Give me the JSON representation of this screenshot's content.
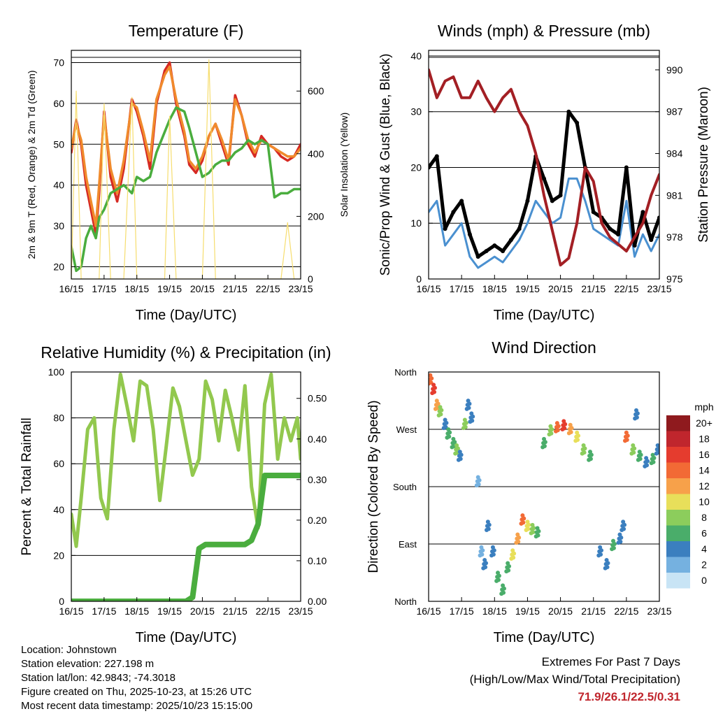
{
  "x_ticks": [
    "16/15",
    "17/15",
    "18/15",
    "19/15",
    "20/15",
    "21/15",
    "22/15",
    "23/15"
  ],
  "x_label": "Time (Day/UTC)",
  "chart_data": [
    {
      "type": "line",
      "title": "Temperature (F)",
      "xlabel": "Time (Day/UTC)",
      "ylabel": "2m & 9m T (Red, Orange) & 2m Td (Green)",
      "y2label": "Solar Insolation (Yellow)",
      "ylim": [
        17,
        73
      ],
      "yticks": [
        20,
        30,
        40,
        50,
        60,
        70
      ],
      "y2lim": [
        0,
        730
      ],
      "y2ticks": [
        0,
        200,
        400,
        600
      ],
      "x": [
        0,
        0.15,
        0.3,
        0.45,
        0.6,
        0.75,
        0.85,
        1.0,
        1.2,
        1.4,
        1.6,
        1.85,
        2.0,
        2.2,
        2.4,
        2.6,
        2.85,
        3.0,
        3.2,
        3.45,
        3.6,
        3.8,
        4.0,
        4.2,
        4.4,
        4.6,
        4.8,
        5.0,
        5.2,
        5.4,
        5.6,
        5.8,
        6.0,
        6.2,
        6.4,
        6.6,
        6.8,
        7.0
      ],
      "series": [
        {
          "name": "2m T",
          "color": "#d62a23",
          "values": [
            48,
            56,
            50,
            40,
            34,
            28,
            38,
            58,
            42,
            36,
            44,
            61,
            58,
            52,
            44,
            60,
            68,
            70,
            60,
            52,
            45,
            43,
            46,
            52,
            55,
            50,
            45,
            62,
            57,
            50,
            47,
            52,
            50,
            49,
            47,
            46,
            47,
            50
          ]
        },
        {
          "name": "9m T",
          "color": "#f08a2c",
          "values": [
            49,
            55,
            51,
            42,
            36,
            30,
            40,
            57,
            44,
            38,
            46,
            60,
            59,
            53,
            46,
            61,
            67,
            69,
            61,
            53,
            46,
            44,
            47,
            52,
            55,
            51,
            46,
            61,
            57,
            51,
            48,
            51,
            50,
            49,
            48,
            47,
            47,
            49
          ]
        },
        {
          "name": "2m Td",
          "color": "#4aad3e",
          "values": [
            25,
            19,
            20,
            27,
            30,
            27,
            32,
            34,
            38,
            39,
            40,
            38,
            42,
            41,
            42,
            48,
            53,
            56,
            59,
            58,
            54,
            48,
            42,
            43,
            45,
            46,
            46,
            48,
            49,
            51,
            50,
            51,
            50,
            37,
            38,
            38,
            39,
            39
          ]
        },
        {
          "name": "Solar Insolation",
          "color": "#f6dd6e",
          "values": [
            0,
            600,
            0,
            0,
            0,
            0,
            0,
            560,
            0,
            0,
            0,
            580,
            0,
            0,
            0,
            0,
            0,
            520,
            0,
            0,
            0,
            0,
            0,
            700,
            0,
            0,
            0,
            0,
            0,
            0,
            0,
            0,
            0,
            0,
            0,
            180,
            0,
            0
          ]
        }
      ]
    },
    {
      "type": "line",
      "title": "Winds (mph) & Pressure (mb)",
      "xlabel": "Time (Day/UTC)",
      "ylabel": "Sonic/Prop Wind & Gust (Blue, Black)",
      "y2label": "Station Pressure (Maroon)",
      "ylim": [
        0,
        41
      ],
      "yticks": [
        0,
        10,
        20,
        30,
        40
      ],
      "y2lim": [
        975,
        991.4
      ],
      "y2ticks": [
        975,
        978,
        981,
        984,
        987,
        990
      ],
      "x": [
        0,
        0.25,
        0.5,
        0.75,
        1.0,
        1.25,
        1.5,
        1.75,
        2.0,
        2.25,
        2.5,
        2.75,
        3.0,
        3.25,
        3.5,
        3.75,
        4.0,
        4.25,
        4.5,
        4.75,
        5.0,
        5.25,
        5.5,
        5.75,
        6.0,
        6.25,
        6.5,
        6.75,
        7.0
      ],
      "series": [
        {
          "name": "Wind",
          "color": "#4a90d0",
          "values": [
            12,
            14,
            6,
            8,
            10,
            4,
            2,
            3,
            4,
            3,
            5,
            7,
            10,
            14,
            12,
            10,
            11,
            18,
            18,
            14,
            9,
            8,
            7,
            6,
            14,
            4,
            8,
            5,
            8
          ]
        },
        {
          "name": "Gust",
          "color": "#000000",
          "values": [
            20,
            22,
            9,
            12,
            14,
            8,
            4,
            5,
            6,
            5,
            7,
            9,
            14,
            22,
            18,
            14,
            15,
            30,
            28,
            20,
            12,
            11,
            9,
            8,
            20,
            6,
            12,
            7,
            11
          ]
        },
        {
          "name": "Pressure",
          "color": "#a31f24",
          "values": [
            990,
            988,
            989.2,
            989.5,
            988,
            988,
            989.2,
            988,
            987,
            988,
            988.6,
            987,
            986,
            984,
            981,
            978.5,
            976,
            976.5,
            979,
            983,
            982,
            979,
            978,
            977.5,
            977,
            978,
            979,
            981,
            982.5
          ]
        }
      ]
    },
    {
      "type": "line",
      "title": "Relative Humidity (%) & Precipitation (in)",
      "xlabel": "Time (Day/UTC)",
      "ylabel": "Percent & Total Rainfall",
      "ylim": [
        0,
        100
      ],
      "yticks": [
        0,
        20,
        40,
        60,
        80,
        100
      ],
      "y2lim": [
        0,
        0.565
      ],
      "y2ticks": [
        0.0,
        0.1,
        0.2,
        0.3,
        0.4,
        0.5
      ],
      "x": [
        0,
        0.15,
        0.3,
        0.5,
        0.7,
        0.9,
        1.1,
        1.3,
        1.5,
        1.7,
        1.9,
        2.1,
        2.3,
        2.5,
        2.7,
        2.9,
        3.1,
        3.3,
        3.5,
        3.7,
        3.9,
        4.1,
        4.3,
        4.5,
        4.7,
        4.9,
        5.1,
        5.3,
        5.5,
        5.7,
        5.9,
        6.1,
        6.3,
        6.5,
        6.7,
        6.9,
        7.0
      ],
      "series": [
        {
          "name": "Relative Humidity",
          "color": "#92c84e",
          "values": [
            38,
            24,
            45,
            75,
            80,
            45,
            36,
            75,
            99,
            85,
            70,
            96,
            94,
            75,
            44,
            68,
            93,
            85,
            70,
            55,
            62,
            96,
            88,
            70,
            92,
            80,
            66,
            94,
            50,
            32,
            86,
            99,
            62,
            80,
            70,
            80,
            62
          ]
        },
        {
          "name": "Total Precipitation",
          "color": "#4aad3e",
          "values": [
            0,
            0,
            0,
            0,
            0,
            0,
            0,
            0,
            0,
            0,
            0,
            0,
            0,
            0,
            0,
            0,
            0,
            0,
            0,
            0.01,
            0.13,
            0.14,
            0.14,
            0.14,
            0.14,
            0.14,
            0.14,
            0.14,
            0.15,
            0.19,
            0.31,
            0.31,
            0.31,
            0.31,
            0.31,
            0.31,
            0.31
          ]
        }
      ]
    },
    {
      "type": "scatter",
      "title": "Wind Direction",
      "xlabel": "Time (Day/UTC)",
      "ylabel": "Direction (Colored By Speed)",
      "ylim": [
        0,
        360
      ],
      "ylabels": [
        {
          "v": 360,
          "t": "North"
        },
        {
          "v": 270,
          "t": "West"
        },
        {
          "v": 180,
          "t": "South"
        },
        {
          "v": 90,
          "t": "East"
        },
        {
          "v": 0,
          "t": "North"
        }
      ],
      "colorbar": {
        "title": "mph",
        "labels": [
          "20+",
          "18",
          "16",
          "14",
          "12",
          "10",
          "8",
          "6",
          "4",
          "2",
          "0"
        ],
        "colors": [
          "#8f1a1e",
          "#c0262d",
          "#e53c2e",
          "#f26a35",
          "#f7a14a",
          "#e8df5a",
          "#8ccd5c",
          "#4aad6a",
          "#3b7fbf",
          "#75b1e0",
          "#c8e4f5"
        ]
      },
      "series": [
        {
          "name": "Direction",
          "color_by": "speed",
          "points": [
            [
              0.05,
              350,
              14
            ],
            [
              0.15,
              335,
              16
            ],
            [
              0.25,
              310,
              12
            ],
            [
              0.35,
              300,
              8
            ],
            [
              0.5,
              280,
              4
            ],
            [
              0.6,
              265,
              5
            ],
            [
              0.75,
              250,
              6
            ],
            [
              0.85,
              240,
              8
            ],
            [
              0.95,
              230,
              4
            ],
            [
              1.1,
              280,
              8
            ],
            [
              1.2,
              310,
              3
            ],
            [
              1.3,
              290,
              4
            ],
            [
              1.5,
              190,
              2
            ],
            [
              1.6,
              80,
              2
            ],
            [
              1.7,
              60,
              3
            ],
            [
              1.8,
              120,
              4
            ],
            [
              1.95,
              80,
              4
            ],
            [
              2.1,
              40,
              5
            ],
            [
              2.25,
              20,
              6
            ],
            [
              2.4,
              55,
              6
            ],
            [
              2.55,
              75,
              10
            ],
            [
              2.7,
              100,
              12
            ],
            [
              2.85,
              130,
              14
            ],
            [
              3.0,
              120,
              10
            ],
            [
              3.15,
              115,
              8
            ],
            [
              3.3,
              110,
              6
            ],
            [
              3.5,
              250,
              5
            ],
            [
              3.7,
              270,
              8
            ],
            [
              3.9,
              275,
              14
            ],
            [
              4.1,
              278,
              16
            ],
            [
              4.3,
              272,
              12
            ],
            [
              4.5,
              260,
              10
            ],
            [
              4.7,
              240,
              8
            ],
            [
              4.9,
              230,
              6
            ],
            [
              5.2,
              80,
              4
            ],
            [
              5.4,
              60,
              3
            ],
            [
              5.6,
              90,
              6
            ],
            [
              5.8,
              100,
              3
            ],
            [
              6.0,
              260,
              14
            ],
            [
              6.2,
              240,
              8
            ],
            [
              6.4,
              230,
              5
            ],
            [
              6.6,
              220,
              4
            ],
            [
              6.8,
              225,
              6
            ],
            [
              6.95,
              240,
              4
            ],
            [
              5.9,
              120,
              3
            ],
            [
              6.3,
              295,
              4
            ]
          ]
        }
      ]
    }
  ],
  "info": {
    "location": "Location: Johnstown",
    "elevation": "Station elevation: 227.198 m",
    "latlon": "Station lat/lon: 42.9843; -74.3018",
    "created": "Figure created on Thu, 2025-10-23, at 15:26 UTC",
    "recent": "Most recent data timestamp: 2025/10/23 15:15:00"
  },
  "extremes": {
    "title": "Extremes For Past 7 Days",
    "subtitle": "(High/Low/Max Wind/Total Precipitation)",
    "values": "71.9/26.1/22.5/0.31"
  }
}
